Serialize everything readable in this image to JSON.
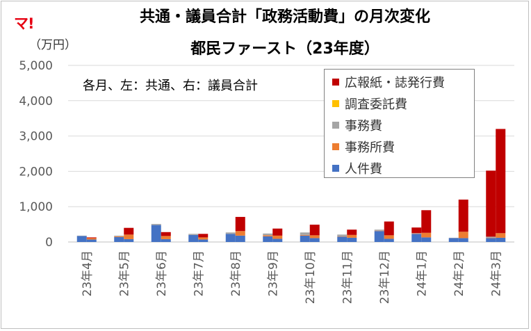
{
  "logo_text": "マ!",
  "title_line1": "共通・議員合計「政務活動費」の月次変化",
  "title_line2": "都民ファースト（23年度）",
  "unit_label": "（万円）",
  "note": "各月、左：共通、右：議員合計",
  "chart_data": {
    "type": "bar",
    "stacked": true,
    "grouped": true,
    "group_names": [
      "共通",
      "議員合計"
    ],
    "categories": [
      "23年4月",
      "23年5月",
      "23年6月",
      "23年7月",
      "23年8月",
      "23年9月",
      "23年10月",
      "23年11月",
      "23年12月",
      "24年1月",
      "24年2月",
      "24年3月"
    ],
    "yticks": [
      "0",
      "1,000",
      "2,000",
      "3,000",
      "4,000",
      "5,000"
    ],
    "ylim": [
      0,
      5000
    ],
    "grid": true,
    "legend_position": "top-right",
    "series": [
      {
        "name": "人件費",
        "color": "#4472c4",
        "left": [
          170,
          140,
          480,
          200,
          230,
          160,
          180,
          150,
          310,
          230,
          110,
          110
        ],
        "right": [
          70,
          80,
          80,
          70,
          180,
          90,
          110,
          120,
          90,
          130,
          110,
          120
        ]
      },
      {
        "name": "事務所費",
        "color": "#ed7d31",
        "left": [
          0,
          20,
          0,
          0,
          0,
          30,
          20,
          10,
          10,
          10,
          0,
          10
        ],
        "right": [
          40,
          130,
          90,
          60,
          130,
          90,
          80,
          80,
          100,
          130,
          180,
          130
        ]
      },
      {
        "name": "事務費",
        "color": "#a5a5a5",
        "left": [
          10,
          20,
          30,
          30,
          40,
          50,
          70,
          50,
          30,
          10,
          10,
          30
        ],
        "right": [
          0,
          0,
          0,
          0,
          0,
          0,
          0,
          0,
          0,
          0,
          0,
          0
        ]
      },
      {
        "name": "調査委託費",
        "color": "#ffc000",
        "left": [
          0,
          0,
          0,
          0,
          0,
          0,
          0,
          0,
          0,
          0,
          0,
          0
        ],
        "right": [
          0,
          0,
          0,
          0,
          0,
          0,
          0,
          0,
          0,
          0,
          0,
          0
        ]
      },
      {
        "name": "広報紙・誌発行費",
        "color": "#c00000",
        "left": [
          0,
          0,
          0,
          0,
          0,
          0,
          0,
          0,
          0,
          160,
          0,
          1870
        ],
        "right": [
          20,
          190,
          110,
          100,
          400,
          200,
          300,
          150,
          390,
          640,
          910,
          2950
        ]
      }
    ]
  }
}
